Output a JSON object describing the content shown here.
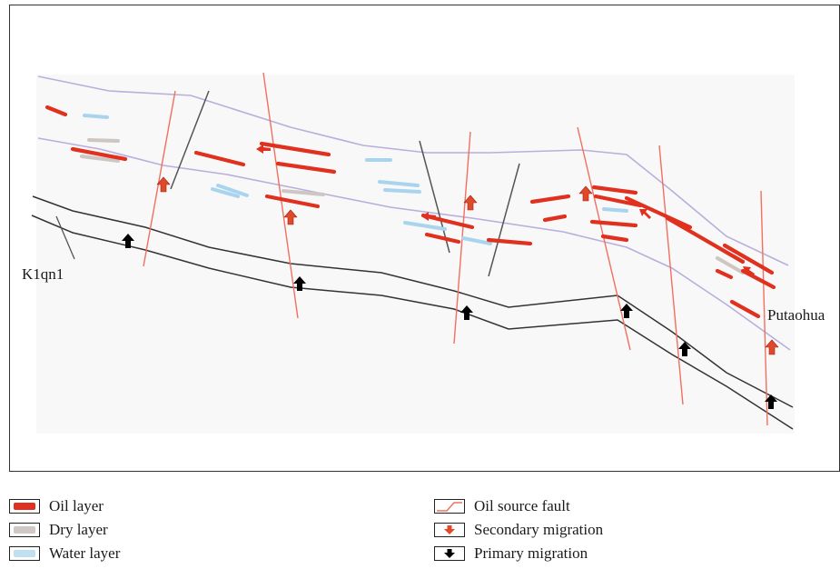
{
  "diagram": {
    "labels": {
      "left_formation": "K1qn1",
      "right_formation": "Putaohua"
    }
  },
  "legend": {
    "left": [
      {
        "label": "Oil layer",
        "icon": "oil-layer-swatch",
        "color": "#e0301e"
      },
      {
        "label": "Dry layer",
        "icon": "dry-layer-swatch",
        "color": "#cfc8c4"
      },
      {
        "label": "Water layer",
        "icon": "water-layer-swatch",
        "color": "#bfe0f2"
      }
    ],
    "right": [
      {
        "label": "Oil source fault",
        "icon": "oil-source-fault-line",
        "color": "#f07060"
      },
      {
        "label": "Secondary migration",
        "icon": "secondary-migration-arrow",
        "color": "#e04a2a"
      },
      {
        "label": "Primary migration",
        "icon": "primary-migration-arrow",
        "color": "#000000"
      }
    ]
  }
}
